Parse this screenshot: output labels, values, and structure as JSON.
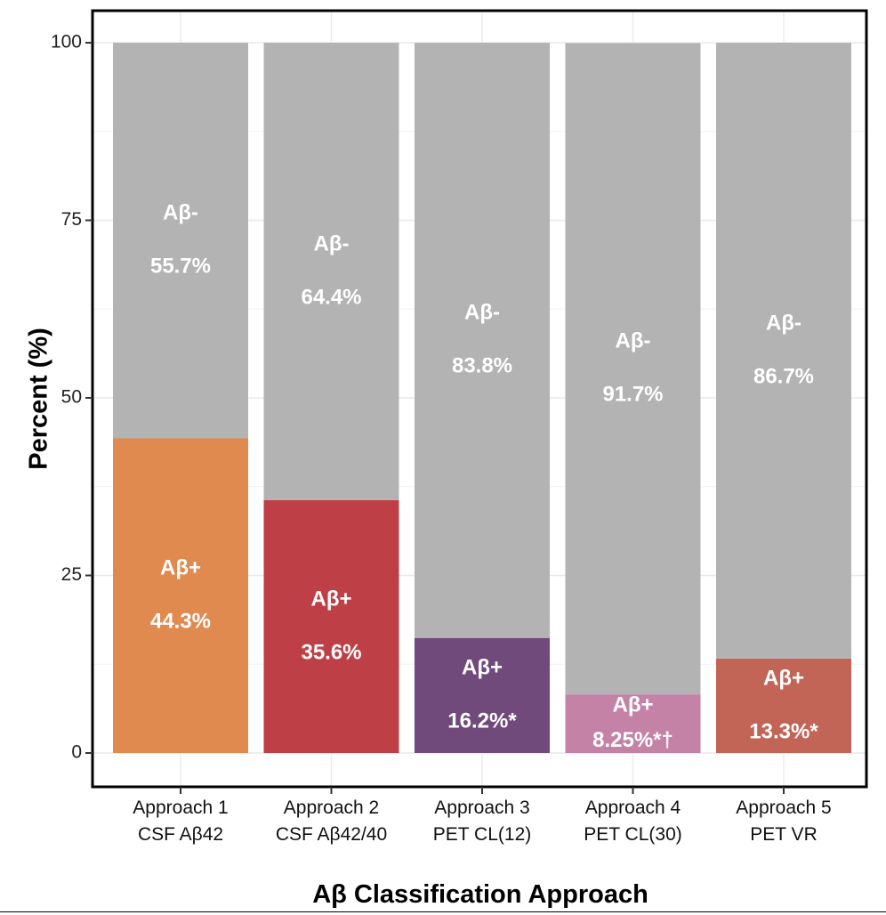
{
  "chart_data": {
    "type": "bar",
    "stacked": true,
    "xlabel": "Aβ Classification Approach",
    "ylabel": "Percent (%)",
    "ylim": [
      0,
      100
    ],
    "yticks": [
      0,
      25,
      50,
      75,
      100
    ],
    "grid": true,
    "categories": [
      [
        "Approach 1",
        "CSF Aβ42"
      ],
      [
        "Approach 2",
        "CSF Aβ42/40"
      ],
      [
        "Approach 3",
        "PET CL(12)"
      ],
      [
        "Approach 4",
        "PET CL(30)"
      ],
      [
        "Approach 5",
        "PET VR"
      ]
    ],
    "series": [
      {
        "segment_label": "Aβ+",
        "values": [
          44.3,
          35.6,
          16.2,
          8.25,
          13.3
        ],
        "value_labels": [
          "44.3%",
          "35.6%",
          "16.2%*",
          "8.25%*†",
          "13.3%*"
        ],
        "colors": [
          "#E08A50",
          "#BE4046",
          "#714A7C",
          "#C482A6",
          "#C26556"
        ]
      },
      {
        "segment_label": "Aβ-",
        "values": [
          55.7,
          64.4,
          83.8,
          91.7,
          86.7
        ],
        "value_labels": [
          "55.7%",
          "64.4%",
          "83.8%",
          "91.7%",
          "86.7%"
        ],
        "colors": [
          "#B3B3B3",
          "#B3B3B3",
          "#B3B3B3",
          "#B3B3B3",
          "#B3B3B3"
        ]
      }
    ]
  }
}
